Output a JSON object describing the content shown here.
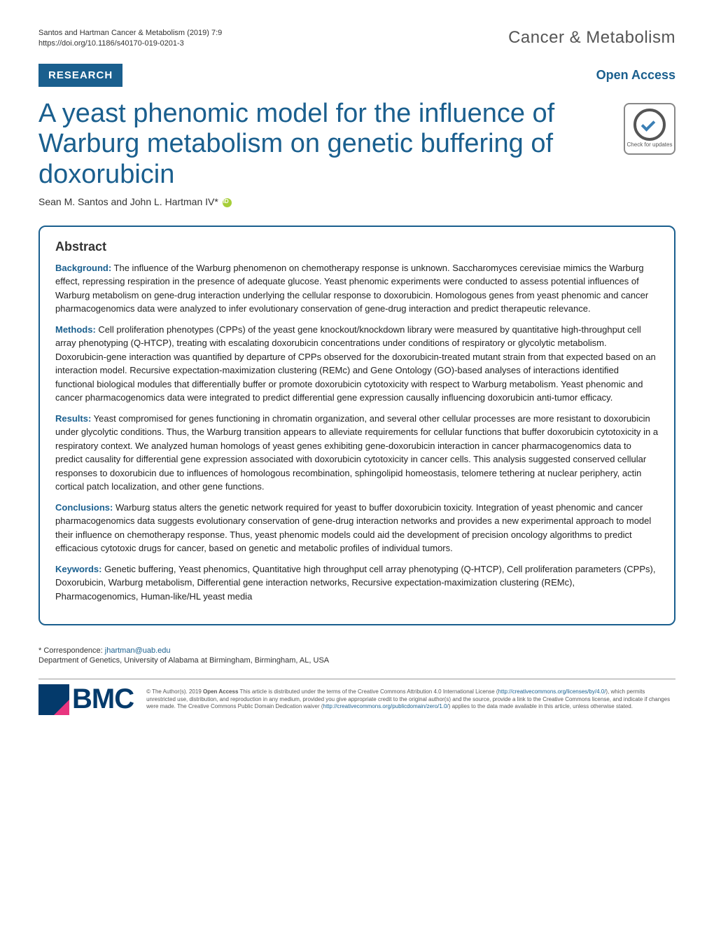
{
  "header": {
    "citation_line1": "Santos and Hartman Cancer & Metabolism           (2019) 7:9",
    "citation_line2": "https://doi.org/10.1186/s40170-019-0201-3",
    "journal": "Cancer & Metabolism"
  },
  "badges": {
    "research": "RESEARCH",
    "open_access": "Open Access"
  },
  "article": {
    "title": "A yeast phenomic model for the influence of Warburg metabolism on genetic buffering of doxorubicin",
    "crossmark": "Check for updates",
    "authors": "Sean M. Santos and John L. Hartman IV*"
  },
  "abstract": {
    "heading": "Abstract",
    "background_label": "Background:",
    "background_text": " The influence of the Warburg phenomenon on chemotherapy response is unknown. Saccharomyces cerevisiae mimics the Warburg effect, repressing respiration in the presence of adequate glucose. Yeast phenomic experiments were conducted to assess potential influences of Warburg metabolism on gene-drug interaction underlying the cellular response to doxorubicin. Homologous genes from yeast phenomic and cancer pharmacogenomics data were analyzed to infer evolutionary conservation of gene-drug interaction and predict therapeutic relevance.",
    "methods_label": "Methods:",
    "methods_text": " Cell proliferation phenotypes (CPPs) of the yeast gene knockout/knockdown library were measured by quantitative high-throughput cell array phenotyping (Q-HTCP), treating with escalating doxorubicin concentrations under conditions of respiratory or glycolytic metabolism. Doxorubicin-gene interaction was quantified by departure of CPPs observed for the doxorubicin-treated mutant strain from that expected based on an interaction model. Recursive expectation-maximization clustering (REMc) and Gene Ontology (GO)-based analyses of interactions identified functional biological modules that differentially buffer or promote doxorubicin cytotoxicity with respect to Warburg metabolism. Yeast phenomic and cancer pharmacogenomics data were integrated to predict differential gene expression causally influencing doxorubicin anti-tumor efficacy.",
    "results_label": "Results:",
    "results_text": " Yeast compromised for genes functioning in chromatin organization, and several other cellular processes are more resistant to doxorubicin under glycolytic conditions. Thus, the Warburg transition appears to alleviate requirements for cellular functions that buffer doxorubicin cytotoxicity in a respiratory context. We analyzed human homologs of yeast genes exhibiting gene-doxorubicin interaction in cancer pharmacogenomics data to predict causality for differential gene expression associated with doxorubicin cytotoxicity in cancer cells. This analysis suggested conserved cellular responses to doxorubicin due to influences of homologous recombination, sphingolipid homeostasis, telomere tethering at nuclear periphery, actin cortical patch localization, and other gene functions.",
    "conclusions_label": "Conclusions:",
    "conclusions_text": " Warburg status alters the genetic network required for yeast to buffer doxorubicin toxicity. Integration of yeast phenomic and cancer pharmacogenomics data suggests evolutionary conservation of gene-drug interaction networks and provides a new experimental approach to model their influence on chemotherapy response. Thus, yeast phenomic models could aid the development of precision oncology algorithms to predict efficacious cytotoxic drugs for cancer, based on genetic and metabolic profiles of individual tumors.",
    "keywords_label": "Keywords:",
    "keywords_text": " Genetic buffering, Yeast phenomics, Quantitative high throughput cell array phenotyping (Q-HTCP), Cell proliferation parameters (CPPs), Doxorubicin, Warburg metabolism, Differential gene interaction networks, Recursive expectation-maximization clustering (REMc), Pharmacogenomics, Human-like/HL yeast media"
  },
  "correspondence": {
    "label": "* Correspondence: ",
    "email": "jhartman@uab.edu",
    "affiliation": "Department of Genetics, University of Alabama at Birmingham, Birmingham, AL, USA"
  },
  "footer": {
    "bmc": "BMC",
    "license_prefix": "© The Author(s). 2019 ",
    "open_access_bold": "Open Access",
    "license_body": " This article is distributed under the terms of the Creative Commons Attribution 4.0 International License (",
    "license_url1": "http://creativecommons.org/licenses/by/4.0/",
    "license_body2": "), which permits unrestricted use, distribution, and reproduction in any medium, provided you give appropriate credit to the original author(s) and the source, provide a link to the Creative Commons license, and indicate if changes were made. The Creative Commons Public Domain Dedication waiver (",
    "license_url2": "http://creativecommons.org/publicdomain/zero/1.0/",
    "license_body3": ") applies to the data made available in this article, unless otherwise stated."
  },
  "colors": {
    "primary": "#1a5f8e",
    "text": "#1a1a1a",
    "bmc_navy": "#043a6b",
    "bmc_pink": "#e8357f",
    "orcid": "#a6ce39"
  }
}
